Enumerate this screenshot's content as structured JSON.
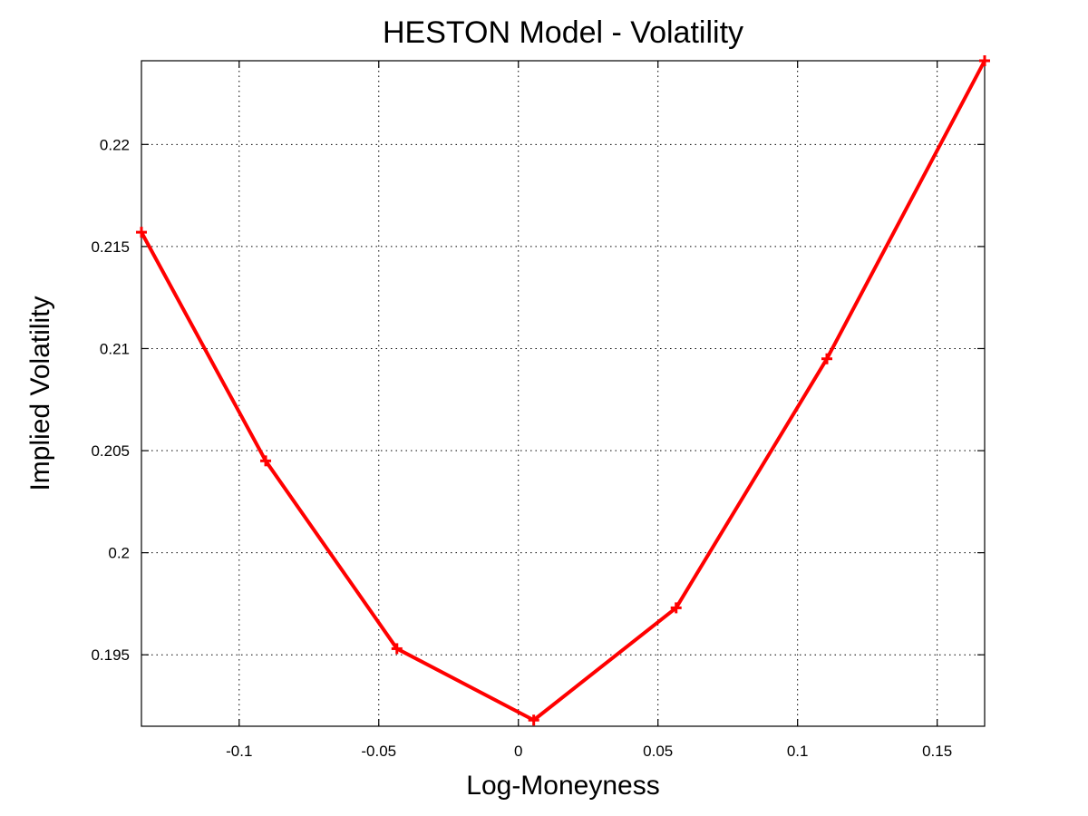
{
  "chart_data": {
    "type": "line",
    "title": "HESTON Model - Volatility",
    "xlabel": "Log-Moneyness",
    "ylabel": "Implied Volatility",
    "xlim": [
      -0.135,
      0.167
    ],
    "ylim": [
      0.1915,
      0.2241
    ],
    "xticks": [
      -0.1,
      -0.05,
      0,
      0.05,
      0.1,
      0.15
    ],
    "xtick_labels": [
      "-0.1",
      "-0.05",
      "0",
      "0.05",
      "0.1",
      "0.15"
    ],
    "yticks": [
      0.195,
      0.2,
      0.205,
      0.21,
      0.215,
      0.22
    ],
    "ytick_labels": [
      "0.195",
      "0.2",
      "0.205",
      "0.21",
      "0.215",
      "0.22"
    ],
    "grid": true,
    "series": [
      {
        "color": "#ff0000",
        "marker": "plus",
        "x": [
          -0.135,
          -0.0905,
          -0.0435,
          0.0055,
          0.0565,
          0.1105,
          0.167
        ],
        "y": [
          0.2157,
          0.2045,
          0.1953,
          0.1918,
          0.1973,
          0.2095,
          0.2241
        ]
      }
    ]
  }
}
